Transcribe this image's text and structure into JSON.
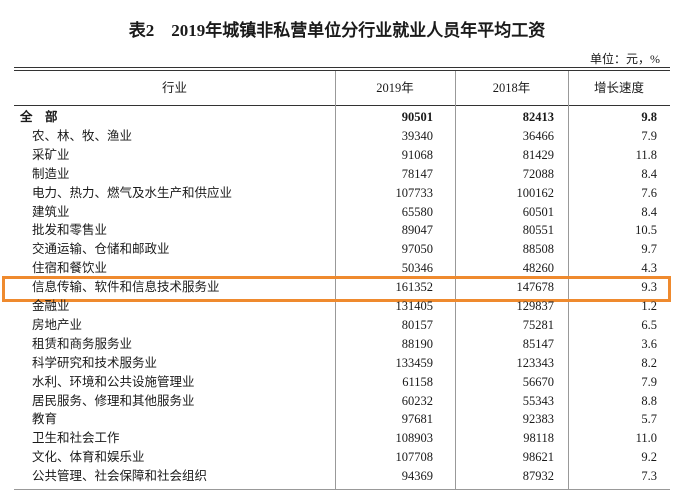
{
  "title": "表2　2019年城镇非私营单位分行业就业人员年平均工资",
  "unit": "单位：元，%",
  "table": {
    "header": [
      "行业",
      "2019年",
      "2018年",
      "增长速度"
    ],
    "rows": [
      [
        "全　部",
        "90501",
        "82413",
        "9.8"
      ],
      [
        "农、林、牧、渔业",
        "39340",
        "36466",
        "7.9"
      ],
      [
        "采矿业",
        "91068",
        "81429",
        "11.8"
      ],
      [
        "制造业",
        "78147",
        "72088",
        "8.4"
      ],
      [
        "电力、热力、燃气及水生产和供应业",
        "107733",
        "100162",
        "7.6"
      ],
      [
        "建筑业",
        "65580",
        "60501",
        "8.4"
      ],
      [
        "批发和零售业",
        "89047",
        "80551",
        "10.5"
      ],
      [
        "交通运输、仓储和邮政业",
        "97050",
        "88508",
        "9.7"
      ],
      [
        "住宿和餐饮业",
        "50346",
        "48260",
        "4.3"
      ],
      [
        "信息传输、软件和信息技术服务业",
        "161352",
        "147678",
        "9.3"
      ],
      [
        "金融业",
        "131405",
        "129837",
        "1.2"
      ],
      [
        "房地产业",
        "80157",
        "75281",
        "6.5"
      ],
      [
        "租赁和商务服务业",
        "88190",
        "85147",
        "3.6"
      ],
      [
        "科学研究和技术服务业",
        "133459",
        "123343",
        "8.2"
      ],
      [
        "水利、环境和公共设施管理业",
        "61158",
        "56670",
        "7.9"
      ],
      [
        "居民服务、修理和其他服务业",
        "60232",
        "55343",
        "8.8"
      ],
      [
        "教育",
        "97681",
        "92383",
        "5.7"
      ],
      [
        "卫生和社会工作",
        "108903",
        "98118",
        "11.0"
      ],
      [
        "文化、体育和娱乐业",
        "107708",
        "98621",
        "9.2"
      ],
      [
        "公共管理、社会保障和社会组织",
        "94369",
        "87932",
        "7.3"
      ]
    ]
  }
}
